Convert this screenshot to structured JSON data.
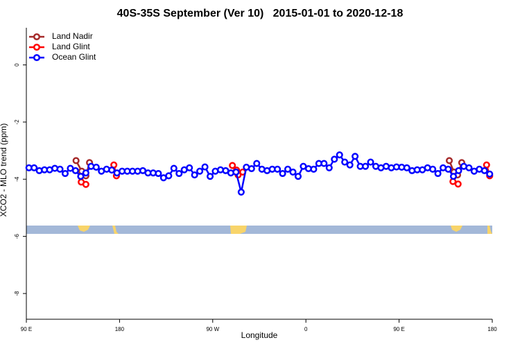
{
  "chart_data": {
    "type": "line",
    "title": "40S-35S September (Ver 10)   2015-01-01 to 2020-12-18",
    "x_label": "Longitude",
    "y_label": "XCO2 - MLO trend (ppm)",
    "xlim": [
      90,
      540
    ],
    "ylim": [
      -8.9,
      1.3
    ],
    "xticks": [
      {
        "value": 90,
        "label": "90 E"
      },
      180,
      {
        "value": 270,
        "label": "90 W"
      },
      {
        "value": 360,
        "label": "0"
      },
      {
        "value": 450,
        "label": "90 E"
      },
      {
        "value": 540,
        "label": "180"
      }
    ],
    "yticks": [
      0,
      -2,
      -4,
      -6,
      -8
    ],
    "legend": "top-left",
    "series": [
      {
        "name": "Land Nadir",
        "color": "#a52a2a",
        "x": [
          138,
          143.5,
          147.5,
          151,
          null,
          498.5,
          503,
          506.5,
          510.5
        ],
        "values": [
          -3.35,
          -3.72,
          -3.88,
          -3.42,
          null,
          -3.35,
          -3.75,
          -3.85,
          -3.42
        ]
      },
      {
        "name": "Land Glint",
        "color": "#ff0000",
        "x": [
          143,
          147.5,
          null,
          174.5,
          177,
          null,
          289,
          293,
          294.5,
          299,
          null,
          502,
          507,
          null,
          534.5,
          537.5
        ],
        "values": [
          -4.1,
          -4.18,
          null,
          -3.5,
          -3.88,
          null,
          -3.52,
          -3.68,
          -3.85,
          -3.75,
          null,
          -4.08,
          -4.17,
          null,
          -3.5,
          -3.88
        ]
      },
      {
        "name": "Ocean Glint",
        "color": "#0000ff",
        "x": [
          92.5,
          97.5,
          102.5,
          107.5,
          112.5,
          117.5,
          122.5,
          127.5,
          132.5,
          137.5,
          142.5,
          147.5,
          152.5,
          157.5,
          162.5,
          167.5,
          172.5,
          177.5,
          182.5,
          187.5,
          192.5,
          197.5,
          202.5,
          207.5,
          212.5,
          217.5,
          222.5,
          227.5,
          232.5,
          237.5,
          242.5,
          247.5,
          252.5,
          257.5,
          262.5,
          267.5,
          272.5,
          277.5,
          282.5,
          287.5,
          292.5,
          297.5,
          302.5,
          307.5,
          312.5,
          317.5,
          322.5,
          327.5,
          332.5,
          337.5,
          342.5,
          347.5,
          352.5,
          357.5,
          362.5,
          367.5,
          372.5,
          377.5,
          382.5,
          387.5,
          392.5,
          397.5,
          402.5,
          407.5,
          412.5,
          417.5,
          422.5,
          427.5,
          432.5,
          437.5,
          442.5,
          447.5,
          452.5,
          457.5,
          462.5,
          467.5,
          472.5,
          477.5,
          482.5,
          487.5,
          492.5,
          497.5,
          502.5,
          507.5,
          512.5,
          517.5,
          522.5,
          527.5,
          532.5,
          537.5
        ],
        "values": [
          -3.6,
          -3.6,
          -3.7,
          -3.67,
          -3.67,
          -3.62,
          -3.65,
          -3.8,
          -3.62,
          -3.7,
          -3.9,
          -3.78,
          -3.55,
          -3.58,
          -3.72,
          -3.65,
          -3.68,
          -3.78,
          -3.72,
          -3.72,
          -3.72,
          -3.72,
          -3.7,
          -3.78,
          -3.78,
          -3.8,
          -3.95,
          -3.88,
          -3.62,
          -3.8,
          -3.67,
          -3.6,
          -3.85,
          -3.72,
          -3.57,
          -3.9,
          -3.72,
          -3.67,
          -3.7,
          -3.78,
          -3.75,
          -4.45,
          -3.58,
          -3.63,
          -3.45,
          -3.65,
          -3.7,
          -3.65,
          -3.65,
          -3.8,
          -3.65,
          -3.75,
          -3.9,
          -3.55,
          -3.63,
          -3.65,
          -3.45,
          -3.45,
          -3.6,
          -3.3,
          -3.15,
          -3.4,
          -3.5,
          -3.2,
          -3.55,
          -3.55,
          -3.4,
          -3.55,
          -3.6,
          -3.55,
          -3.6,
          -3.57,
          -3.58,
          -3.6,
          -3.7,
          -3.67,
          -3.67,
          -3.6,
          -3.65,
          -3.8,
          -3.6,
          -3.65,
          -3.9,
          -3.7,
          -3.55,
          -3.6,
          -3.72,
          -3.65,
          -3.7,
          -3.82
        ]
      }
    ]
  }
}
